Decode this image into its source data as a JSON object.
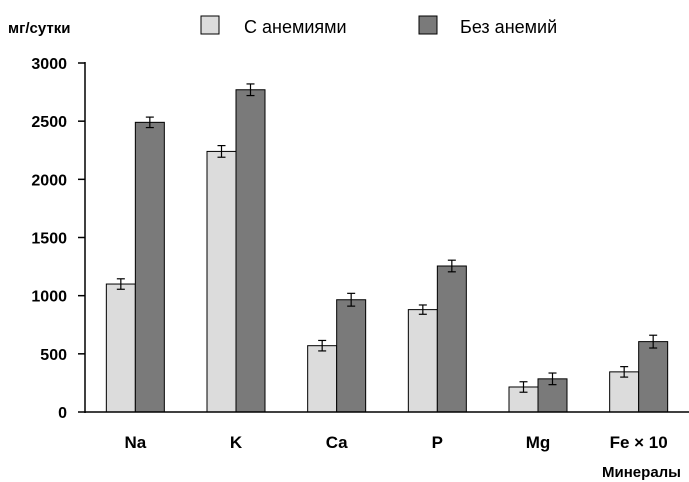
{
  "chart_data": {
    "type": "bar",
    "ylabel": "мг/сутки",
    "xlabel": "Минералы",
    "categories": [
      "Na",
      "K",
      "Ca",
      "P",
      "Mg",
      "Fe × 10"
    ],
    "ylim": [
      0,
      3000
    ],
    "yticks": [
      0,
      500,
      1000,
      1500,
      2000,
      2500,
      3000
    ],
    "grid": false,
    "legend_position": "top",
    "series": [
      {
        "name": "С анемиями",
        "color": "#dcdcdc",
        "values": [
          1100,
          2240,
          570,
          880,
          215,
          345
        ],
        "errors": [
          45,
          50,
          45,
          40,
          45,
          45
        ]
      },
      {
        "name": "Без анемий",
        "color": "#7a7a7a",
        "values": [
          2490,
          2770,
          965,
          1255,
          285,
          605
        ],
        "errors": [
          45,
          50,
          55,
          50,
          50,
          55
        ]
      }
    ]
  }
}
